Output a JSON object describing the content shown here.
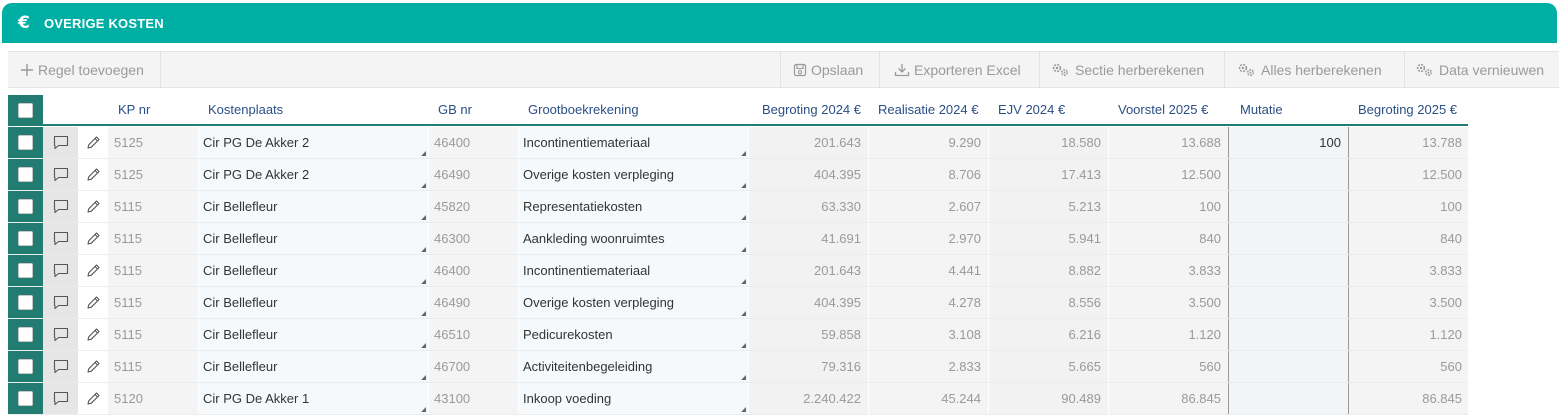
{
  "header": {
    "icon": "euro-icon",
    "euro_glyph": "€",
    "title": "OVERIGE KOSTEN",
    "color": "#00afa3"
  },
  "toolbar": {
    "add_row": "Regel toevoegen",
    "save": "Opslaan",
    "export_excel": "Exporteren Excel",
    "recalc_section": "Sectie herberekenen",
    "recalc_all": "Alles herberekenen",
    "refresh_data": "Data vernieuwen"
  },
  "table": {
    "columns": {
      "kp_nr": "KP nr",
      "kostenplaats": "Kostenplaats",
      "gb_nr": "GB nr",
      "grootboekrekening": "Grootboekrekening",
      "begroting_2024": "Begroting 2024 €",
      "realisatie_2024": "Realisatie 2024 €",
      "ejv_2024": "EJV 2024 €",
      "voorstel_2025": "Voorstel 2025 €",
      "mutatie": "Mutatie",
      "begroting_2025": "Begroting 2025 €"
    },
    "rows": [
      {
        "kp_nr": "5125",
        "kostenplaats": "Cir PG De Akker 2",
        "gb_nr": "46400",
        "grootboekrekening": "Incontinentiemateriaal",
        "begroting_2024": "201.643",
        "realisatie_2024": "9.290",
        "ejv_2024": "18.580",
        "voorstel_2025": "13.688",
        "mutatie": "100",
        "begroting_2025": "13.788"
      },
      {
        "kp_nr": "5125",
        "kostenplaats": "Cir PG De Akker 2",
        "gb_nr": "46490",
        "grootboekrekening": "Overige kosten verpleging",
        "begroting_2024": "404.395",
        "realisatie_2024": "8.706",
        "ejv_2024": "17.413",
        "voorstel_2025": "12.500",
        "mutatie": "",
        "begroting_2025": "12.500"
      },
      {
        "kp_nr": "5115",
        "kostenplaats": "Cir Bellefleur",
        "gb_nr": "45820",
        "grootboekrekening": "Representatiekosten",
        "begroting_2024": "63.330",
        "realisatie_2024": "2.607",
        "ejv_2024": "5.213",
        "voorstel_2025": "100",
        "mutatie": "",
        "begroting_2025": "100"
      },
      {
        "kp_nr": "5115",
        "kostenplaats": "Cir Bellefleur",
        "gb_nr": "46300",
        "grootboekrekening": "Aankleding woonruimtes",
        "begroting_2024": "41.691",
        "realisatie_2024": "2.970",
        "ejv_2024": "5.941",
        "voorstel_2025": "840",
        "mutatie": "",
        "begroting_2025": "840"
      },
      {
        "kp_nr": "5115",
        "kostenplaats": "Cir Bellefleur",
        "gb_nr": "46400",
        "grootboekrekening": "Incontinentiemateriaal",
        "begroting_2024": "201.643",
        "realisatie_2024": "4.441",
        "ejv_2024": "8.882",
        "voorstel_2025": "3.833",
        "mutatie": "",
        "begroting_2025": "3.833"
      },
      {
        "kp_nr": "5115",
        "kostenplaats": "Cir Bellefleur",
        "gb_nr": "46490",
        "grootboekrekening": "Overige kosten verpleging",
        "begroting_2024": "404.395",
        "realisatie_2024": "4.278",
        "ejv_2024": "8.556",
        "voorstel_2025": "3.500",
        "mutatie": "",
        "begroting_2025": "3.500"
      },
      {
        "kp_nr": "5115",
        "kostenplaats": "Cir Bellefleur",
        "gb_nr": "46510",
        "grootboekrekening": "Pedicurekosten",
        "begroting_2024": "59.858",
        "realisatie_2024": "3.108",
        "ejv_2024": "6.216",
        "voorstel_2025": "1.120",
        "mutatie": "",
        "begroting_2025": "1.120"
      },
      {
        "kp_nr": "5115",
        "kostenplaats": "Cir Bellefleur",
        "gb_nr": "46700",
        "grootboekrekening": "Activiteitenbegeleiding",
        "begroting_2024": "79.316",
        "realisatie_2024": "2.833",
        "ejv_2024": "5.665",
        "voorstel_2025": "560",
        "mutatie": "",
        "begroting_2025": "560"
      },
      {
        "kp_nr": "5120",
        "kostenplaats": "Cir PG De Akker 1",
        "gb_nr": "43100",
        "grootboekrekening": "Inkoop voeding",
        "begroting_2024": "2.240.422",
        "realisatie_2024": "45.244",
        "ejv_2024": "90.489",
        "voorstel_2025": "86.845",
        "mutatie": "",
        "begroting_2025": "86.845"
      }
    ]
  }
}
